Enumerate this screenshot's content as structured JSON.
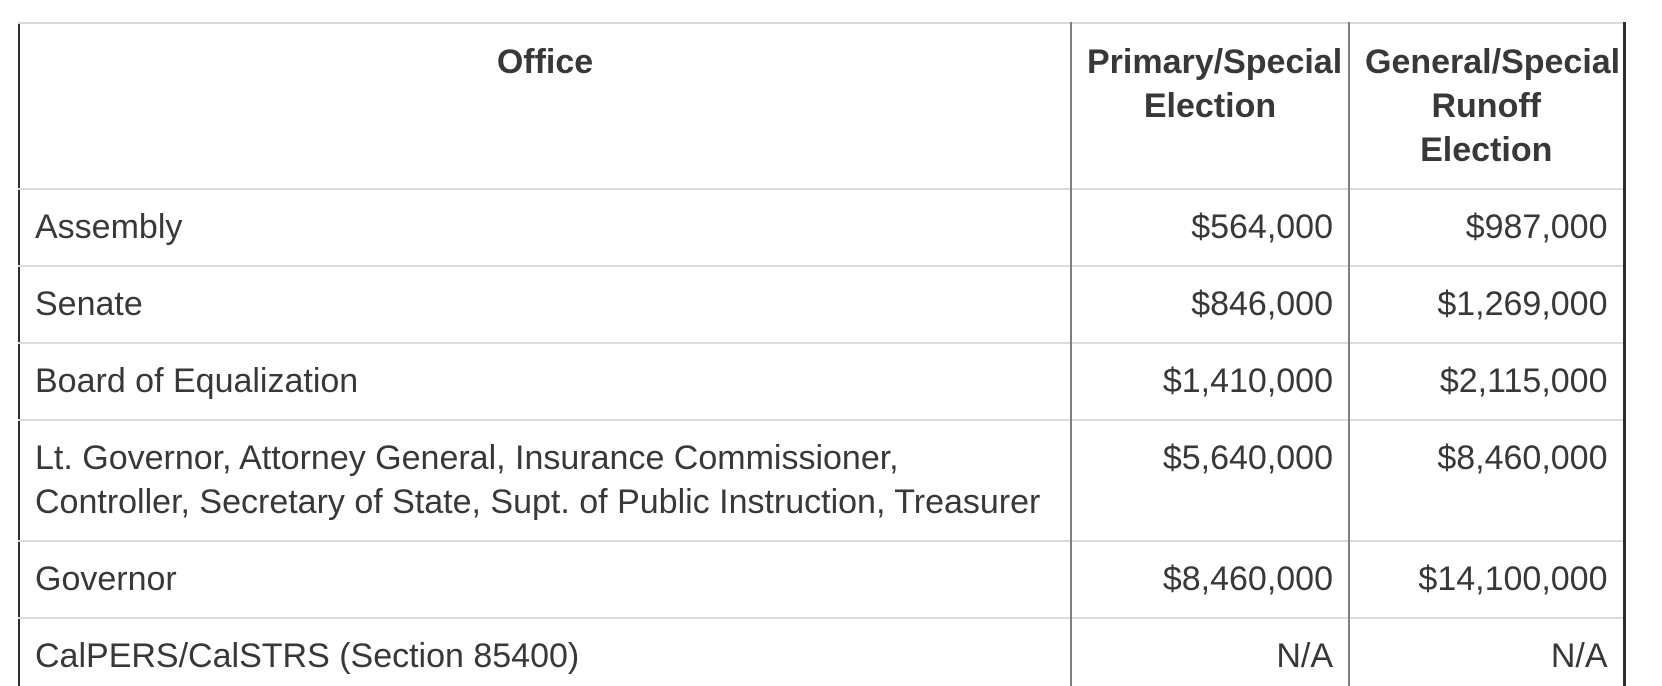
{
  "table": {
    "header": {
      "office": "Office",
      "primary_lines": [
        "Primary/Special",
        "Election"
      ],
      "general_lines": [
        "General/Special",
        "Runoff Election"
      ]
    },
    "rows": [
      {
        "office": "Assembly",
        "primary": "$564,000",
        "general": "$987,000"
      },
      {
        "office": "Senate",
        "primary": "$846,000",
        "general": "$1,269,000"
      },
      {
        "office": "Board of Equalization",
        "primary": "$1,410,000",
        "general": "$2,115,000"
      },
      {
        "office": "Lt. Governor, Attorney General, Insurance Commissioner, Controller, Secretary of State, Supt. of Public Instruction, Treasurer",
        "primary": "$5,640,000",
        "general": "$8,460,000"
      },
      {
        "office": "Governor",
        "primary": "$8,460,000",
        "general": "$14,100,000"
      },
      {
        "office": "CalPERS/CalSTRS (Section 85400)",
        "primary": "N/A",
        "general": "N/A"
      }
    ],
    "colors": {
      "text": "#383838",
      "outer_border": "#2d2d2d",
      "top_border": "#d9d9d9",
      "column_divider": "#7f7f7f",
      "row_divider": "#dbdbdb",
      "background": "#ffffff"
    }
  }
}
